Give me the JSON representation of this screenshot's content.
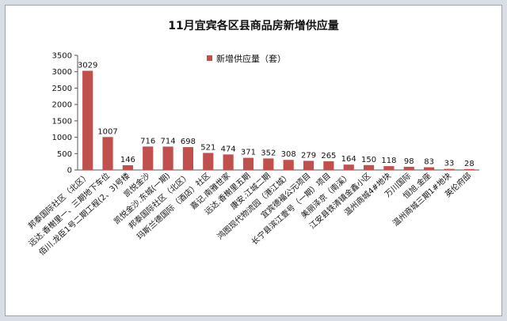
{
  "chart_data": {
    "type": "bar",
    "title": "11月宜宾各区县商品房新增供应量",
    "legend": "新增供应量（套）",
    "legend_position": "top-center",
    "bar_color": "#c0504d",
    "ylim": [
      0,
      3500
    ],
    "yticks": [
      0,
      500,
      1000,
      1500,
      2000,
      2500,
      3000,
      3500
    ],
    "grid": false,
    "categories": [
      "邦泰国际社区（北区）",
      "远达.香榭里一、三期地下车位",
      "佰川.龙臣1号二期工程(2、3)号楼",
      "凯悦金沙",
      "凯悦金沙.东城(一期)",
      "邦泰国际社区（北区）",
      "玛斯兰德国际（酒店）社区",
      "嘉记.南雅世家",
      "远达.香榭里五期",
      "康安.江城二期",
      "鸿图现代物流园（港江城）",
      "宜宾德福公元项目",
      "长宁县滨江壹号（一期）项目",
      "美丽泽京（南溪）",
      "江安县铁清镇金鑫小区",
      "温州商城4#地块",
      "万川国际",
      "恒旭.金座",
      "温州商城三期1#地块",
      "英伦府邸"
    ],
    "values": [
      3029,
      1007,
      146,
      716,
      714,
      698,
      521,
      474,
      371,
      352,
      308,
      279,
      265,
      164,
      150,
      118,
      98,
      83,
      33,
      28
    ]
  }
}
